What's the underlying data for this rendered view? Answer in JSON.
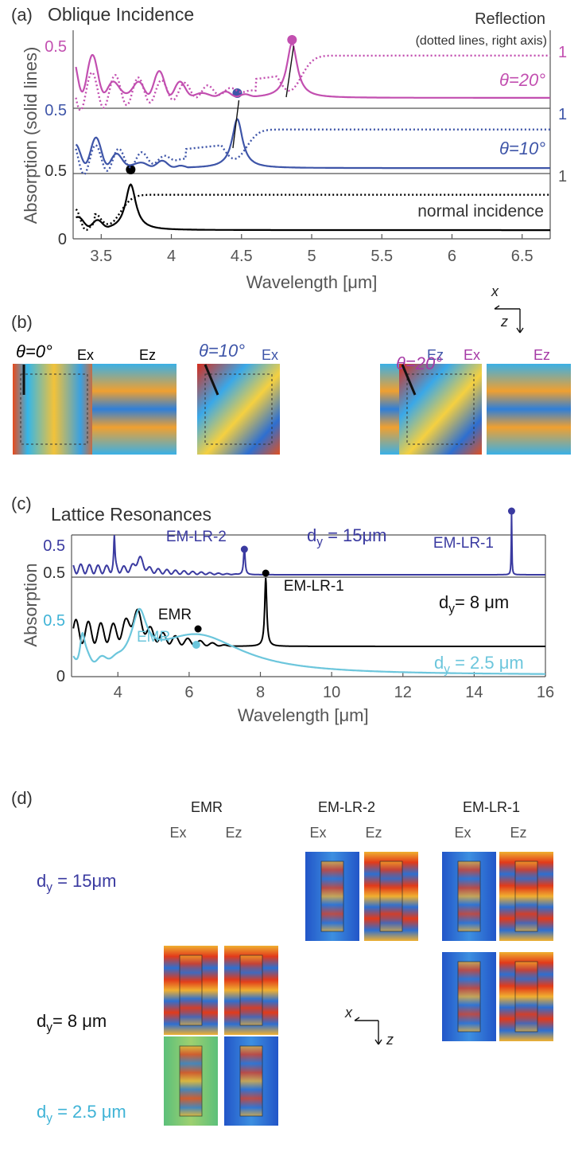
{
  "chart_data": [
    {
      "type": "line",
      "panel_label": "(a)",
      "title": "Oblique Incidence",
      "xlabel": "Wavelength [μm]",
      "ylabel": "Absorption (solid lines)",
      "right_title_1": "Reflection",
      "right_title_2": "(dotted lines, right axis)",
      "xlim": [
        3.3,
        6.7
      ],
      "xticks": [
        "3.5",
        "4",
        "4.5",
        "5",
        "5.5",
        "6",
        "6.5"
      ],
      "xtick_values": [
        3.5,
        4,
        4.5,
        5,
        5.5,
        6,
        6.5
      ],
      "left_ticks": [
        "0",
        "0.5",
        "0.5",
        "0.5"
      ],
      "right_ticks": [
        "1",
        "1",
        "1"
      ],
      "series": [
        {
          "name": "normal incidence",
          "color": "#000000",
          "peak_x": 3.71,
          "peak_y": 0.53
        },
        {
          "name": "θ=10°",
          "color": "#3e55a8",
          "peak_x": 4.47,
          "peak_y": 0.52
        },
        {
          "name": "θ=20°",
          "color": "#c24fb0",
          "peak_x": 4.86,
          "peak_y": 0.5
        }
      ]
    },
    {
      "type": "line",
      "panel_label": "(c)",
      "title": "Lattice Resonances",
      "xlabel": "Wavelength [μm]",
      "ylabel": "Absorption",
      "xlim": [
        2.7,
        16
      ],
      "xticks": [
        "4",
        "6",
        "8",
        "10",
        "12",
        "14",
        "16"
      ],
      "xtick_values": [
        4,
        6,
        8,
        10,
        12,
        14,
        16
      ],
      "left_ticks": [
        "0",
        "0.5",
        "0.5",
        "0.5"
      ],
      "series": [
        {
          "name": "d_y = 15μm",
          "label_main": "d",
          "label_sub": "y",
          "label_rest": " = 15μm",
          "color": "#3a3aa0",
          "annotations": [
            {
              "text": "EM-LR-2",
              "x": 7.55,
              "y": 0.25
            },
            {
              "text": "EM-LR-1",
              "x": 15.05,
              "y": 0.45
            }
          ]
        },
        {
          "name": "d_y = 8 μm",
          "label_main": "d",
          "label_sub": "y",
          "label_rest": "= 8 μm",
          "color": "#000000",
          "annotations": [
            {
              "text": "EMR",
              "x": 6.25,
              "y": 0.2
            },
            {
              "text": "EM-LR-1",
              "x": 8.15,
              "y": 0.5
            }
          ]
        },
        {
          "name": "d_y = 2.5 μm",
          "label_main": "d",
          "label_sub": "y",
          "label_rest": " = 2.5 μm",
          "color": "#6cc6dc",
          "annotations": [
            {
              "text": "EMR",
              "x": 6.2,
              "y": 0.25
            }
          ]
        }
      ]
    }
  ],
  "panel_b": {
    "label": "(b)",
    "axis_x": "x",
    "axis_z": "z",
    "groups": [
      {
        "theta": "θ=0°",
        "ex": "Ex",
        "ez": "Ez",
        "color": "#000000"
      },
      {
        "theta": "θ=10°",
        "ex": "Ex",
        "ez": "Ez",
        "color": "#3e55a8"
      },
      {
        "theta": "θ=20°",
        "ex": "Ex",
        "ez": "Ez",
        "color": "#a63aa6"
      }
    ]
  },
  "panel_d": {
    "label": "(d)",
    "columns": [
      "EMR",
      "EM-LR-2",
      "EM-LR-1"
    ],
    "ex": "Ex",
    "ez": "Ez",
    "axis_x": "x",
    "axis_z": "z",
    "rows": [
      {
        "main": "d",
        "sub": "y",
        "rest": " = 15μm",
        "color": "#3a3aa0"
      },
      {
        "main": "d",
        "sub": "y",
        "rest": "= 8 μm",
        "color": "#111111"
      },
      {
        "main": "d",
        "sub": "y",
        "rest": " = 2.5 μm",
        "color": "#3fb3d6"
      }
    ]
  }
}
